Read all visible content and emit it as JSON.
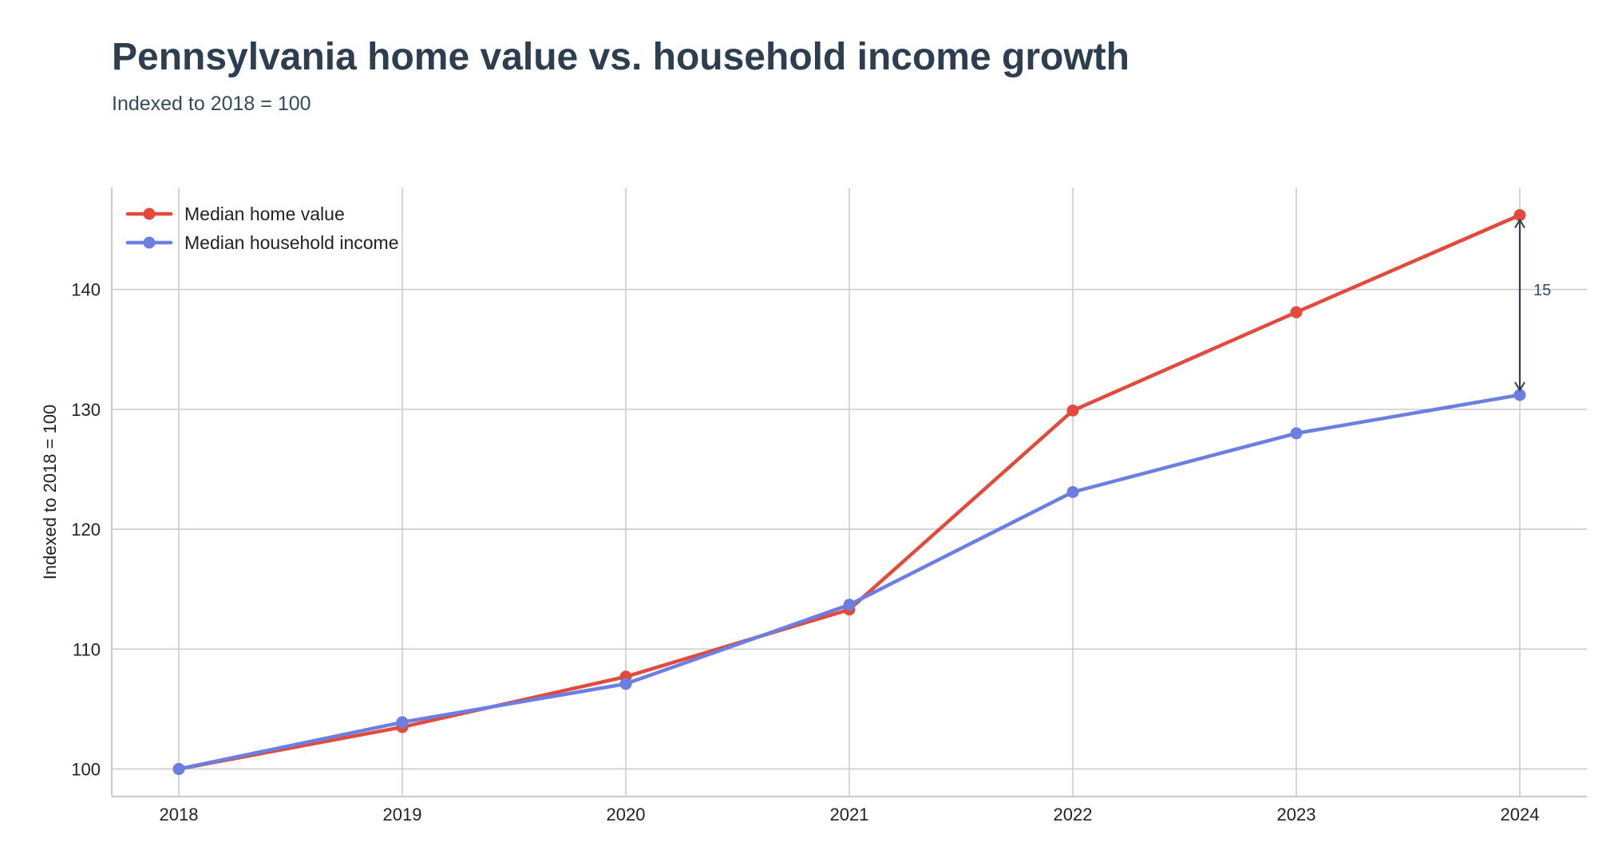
{
  "chart_data": {
    "type": "line",
    "title": "Pennsylvania home value vs. household income growth",
    "subtitle": "Indexed to 2018 = 100",
    "xlabel": "",
    "ylabel": "Indexed to 2018 = 100",
    "x": [
      2018,
      2019,
      2020,
      2021,
      2022,
      2023,
      2024
    ],
    "x_tick_labels": [
      "2018",
      "2019",
      "2020",
      "2021",
      "2022",
      "2023",
      "2024"
    ],
    "ylim": [
      97.7,
      148.5
    ],
    "y_ticks": [
      100,
      110,
      120,
      130,
      140
    ],
    "y_tick_labels": [
      "100",
      "110",
      "120",
      "130",
      "140"
    ],
    "grid": true,
    "legend_position": "top-left",
    "series": [
      {
        "name": "Median home value",
        "color": "#e24a3b",
        "values": [
          100,
          103.5,
          107.7,
          113.3,
          129.9,
          138.1,
          146.2
        ]
      },
      {
        "name": "Median household income",
        "color": "#6b7fe3",
        "values": [
          100,
          103.9,
          107.1,
          113.7,
          123.1,
          128.0,
          131.2
        ]
      }
    ],
    "annotation": {
      "label": "15",
      "x": 2024,
      "y_from": 131.2,
      "y_to": 146.2,
      "color": "#2c3e50"
    }
  }
}
